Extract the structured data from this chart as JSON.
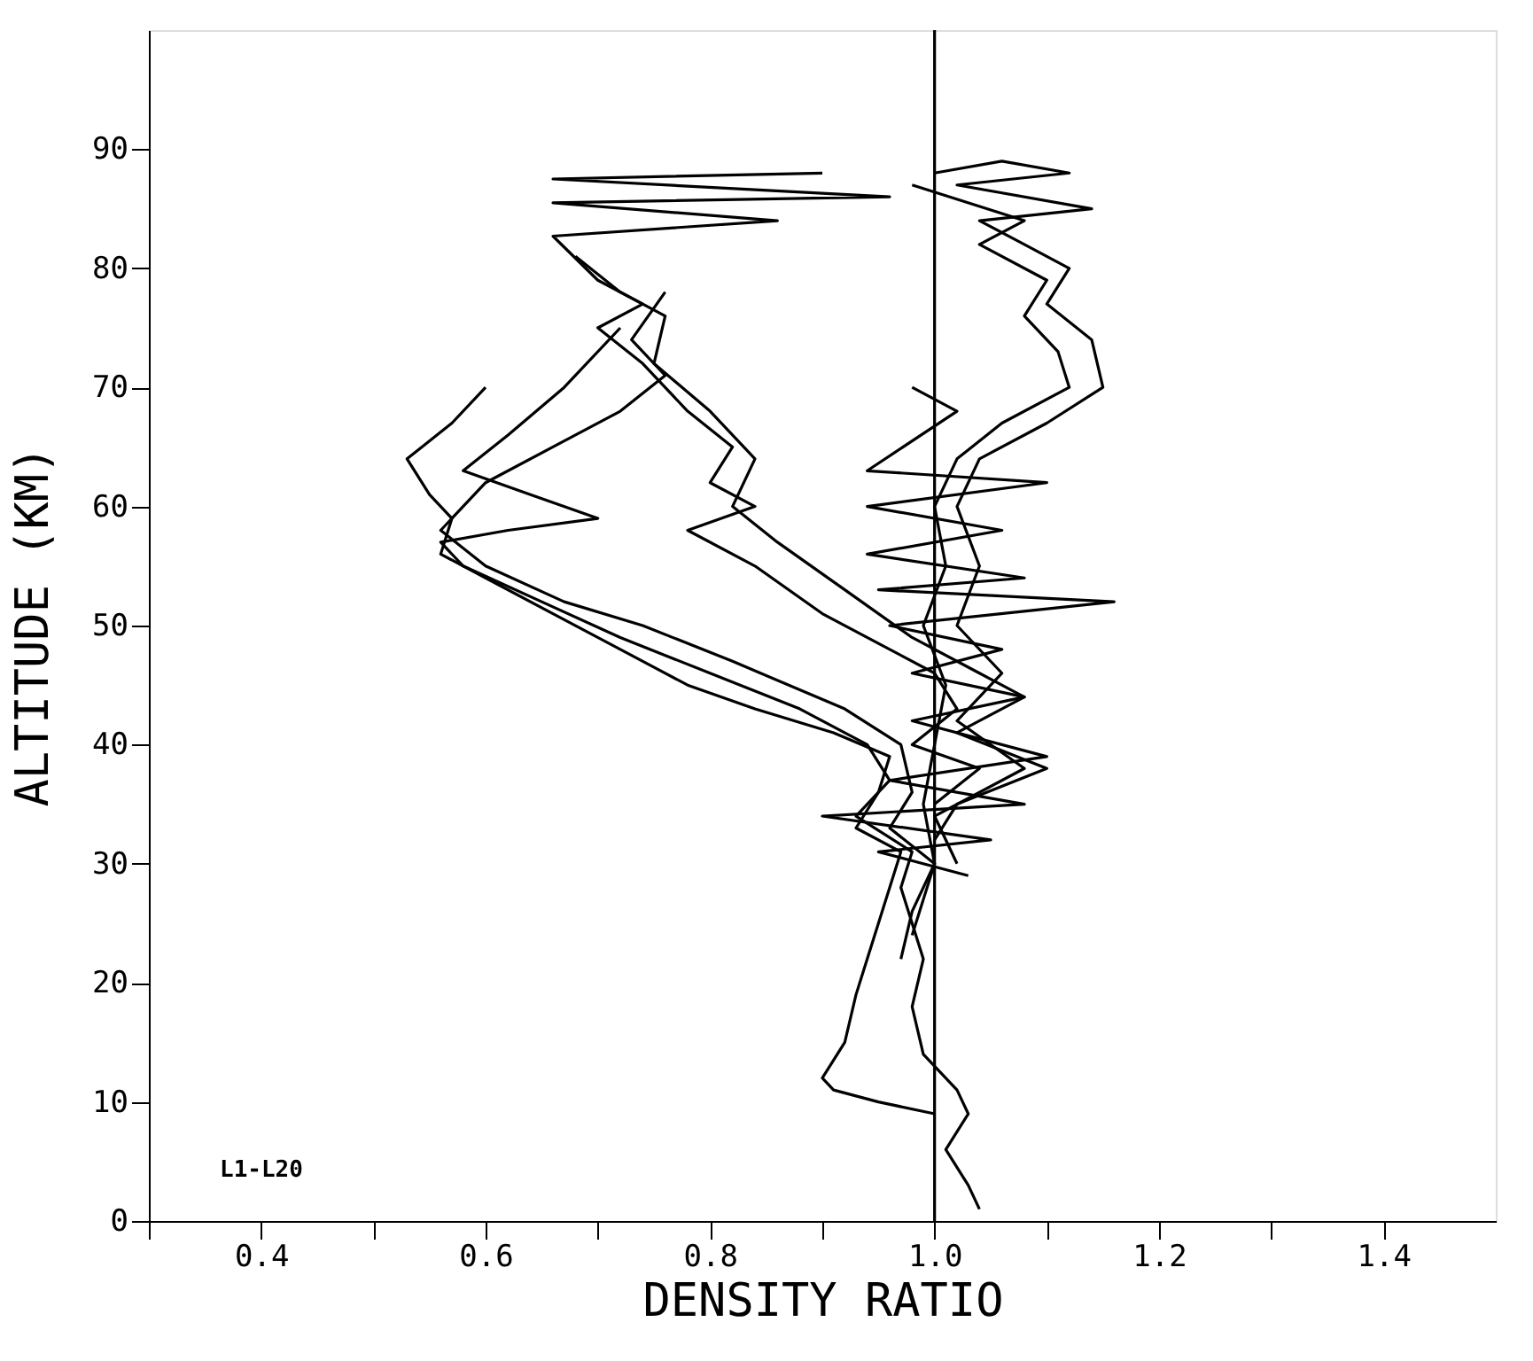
{
  "chart_data": {
    "type": "line",
    "xlabel": "DENSITY RATIO",
    "ylabel": "ALTITUDE (KM)",
    "xlim": [
      0.3,
      1.5
    ],
    "ylim": [
      0,
      100
    ],
    "xticks": [
      {
        "value": 0.3,
        "label": null
      },
      {
        "value": 0.4,
        "label": "0.4"
      },
      {
        "value": 0.5,
        "label": null
      },
      {
        "value": 0.6,
        "label": "0.6"
      },
      {
        "value": 0.7,
        "label": null
      },
      {
        "value": 0.8,
        "label": "0.8"
      },
      {
        "value": 0.9,
        "label": null
      },
      {
        "value": 1.0,
        "label": "1.0"
      },
      {
        "value": 1.1,
        "label": null
      },
      {
        "value": 1.2,
        "label": "1.2"
      },
      {
        "value": 1.3,
        "label": null
      },
      {
        "value": 1.4,
        "label": "1.4"
      }
    ],
    "yticks": [
      0,
      10,
      20,
      30,
      40,
      50,
      60,
      70,
      80,
      90
    ],
    "grid": false,
    "marker": "none",
    "line_style": "solid",
    "ref_lines": [
      {
        "axis": "x",
        "value": 1.0,
        "color": "#000000"
      }
    ],
    "annotations": [
      "L1-L20"
    ],
    "series": [
      {
        "color": "#000000",
        "x": [
          0.6,
          0.57,
          0.53,
          0.55,
          0.57,
          0.56,
          0.6,
          0.66,
          0.72,
          0.78,
          0.84,
          0.91,
          0.96,
          0.95,
          0.93,
          0.97,
          0.96,
          0.95,
          0.94,
          0.93,
          0.92,
          0.9,
          0.91,
          0.95,
          1.0
        ],
        "values": [
          70,
          67,
          64,
          61,
          59,
          56,
          54,
          51,
          48,
          45,
          43,
          41,
          39,
          36,
          33,
          31,
          28,
          25,
          22,
          19,
          15,
          12,
          11,
          10,
          9
        ]
      },
      {
        "color": "#000000",
        "x": [
          0.72,
          0.67,
          0.62,
          0.58,
          0.64,
          0.7,
          0.62,
          0.56,
          0.58,
          0.65,
          0.72,
          0.8,
          0.88,
          0.94,
          0.96,
          0.93,
          0.98,
          0.97,
          0.98,
          0.99,
          0.98,
          0.99,
          1.02,
          1.03,
          1.01,
          1.03,
          1.04
        ],
        "values": [
          75,
          70,
          66,
          63,
          61,
          59,
          58,
          57,
          55,
          52,
          49,
          46,
          43,
          40,
          37,
          34,
          31,
          28,
          25,
          22,
          18,
          14,
          11,
          9,
          6,
          3,
          1
        ]
      },
      {
        "color": "#000000",
        "x": [
          0.76,
          0.73,
          0.76,
          0.72,
          0.66,
          0.6,
          0.56,
          0.6,
          0.67,
          0.74,
          0.82,
          0.92,
          0.97,
          0.98,
          0.96,
          1.0,
          0.99,
          0.98
        ],
        "values": [
          78,
          74,
          71,
          68,
          65,
          62,
          58,
          55,
          52,
          50,
          47,
          43,
          40,
          36,
          33,
          30,
          27,
          24
        ]
      },
      {
        "color": "#000000",
        "x": [
          0.9,
          0.66,
          0.96,
          0.66,
          0.86,
          0.66,
          0.7,
          0.74,
          0.7,
          0.74,
          0.78,
          0.82,
          0.8,
          0.84,
          0.78,
          0.84,
          0.9,
          0.96,
          1.0,
          1.02,
          0.98,
          1.04,
          1.0
        ],
        "values": [
          88,
          87.5,
          86,
          85.5,
          84,
          82.7,
          79,
          77,
          75,
          72,
          68,
          65,
          62,
          60,
          58,
          55,
          51,
          48,
          46,
          43,
          40,
          38,
          35
        ]
      },
      {
        "color": "#000000",
        "x": [
          0.68,
          0.72,
          0.76,
          0.75,
          0.8,
          0.84,
          0.82,
          0.86,
          0.92,
          0.98,
          1.04,
          1.08,
          1.02,
          1.1,
          1.02,
          1.0
        ],
        "values": [
          81,
          78,
          76,
          72,
          68,
          64,
          60,
          57,
          53,
          49,
          46,
          44,
          41,
          38,
          35,
          32
        ]
      },
      {
        "color": "#000000",
        "x": [
          1.0,
          1.06,
          1.12,
          1.02,
          1.14,
          1.04,
          1.08,
          1.12,
          1.1,
          1.14,
          1.15,
          1.1,
          1.04,
          1.02,
          1.04,
          1.02,
          1.06,
          1.02,
          1.08,
          1.0,
          1.02
        ],
        "values": [
          88,
          89,
          88,
          87,
          85,
          84,
          82,
          80,
          77,
          74,
          70,
          67,
          64,
          60,
          55,
          50,
          46,
          42,
          38,
          34,
          30
        ]
      },
      {
        "color": "#000000",
        "x": [
          0.98,
          1.08,
          1.04,
          1.1,
          1.08,
          1.11,
          1.12,
          1.06,
          1.02,
          1.0,
          1.01,
          0.99,
          1.01,
          1.0,
          0.99,
          1.0,
          0.98,
          0.97
        ],
        "values": [
          87,
          84,
          82,
          79,
          76,
          73,
          70,
          67,
          64,
          60,
          55,
          50,
          45,
          40,
          35,
          30,
          26,
          22
        ]
      },
      {
        "color": "#000000",
        "x": [
          0.98,
          1.02,
          0.94,
          1.1,
          0.94,
          1.06,
          0.94,
          1.08,
          0.95,
          1.16,
          0.96,
          1.06,
          0.98,
          1.08,
          0.98,
          1.1,
          0.96,
          1.08,
          0.9,
          1.05,
          0.95,
          1.03
        ],
        "values": [
          70,
          68,
          63,
          62,
          60,
          58,
          56,
          54,
          53,
          52,
          50,
          48,
          46,
          44,
          42,
          39,
          37,
          35,
          34,
          32,
          31,
          29
        ]
      }
    ]
  }
}
